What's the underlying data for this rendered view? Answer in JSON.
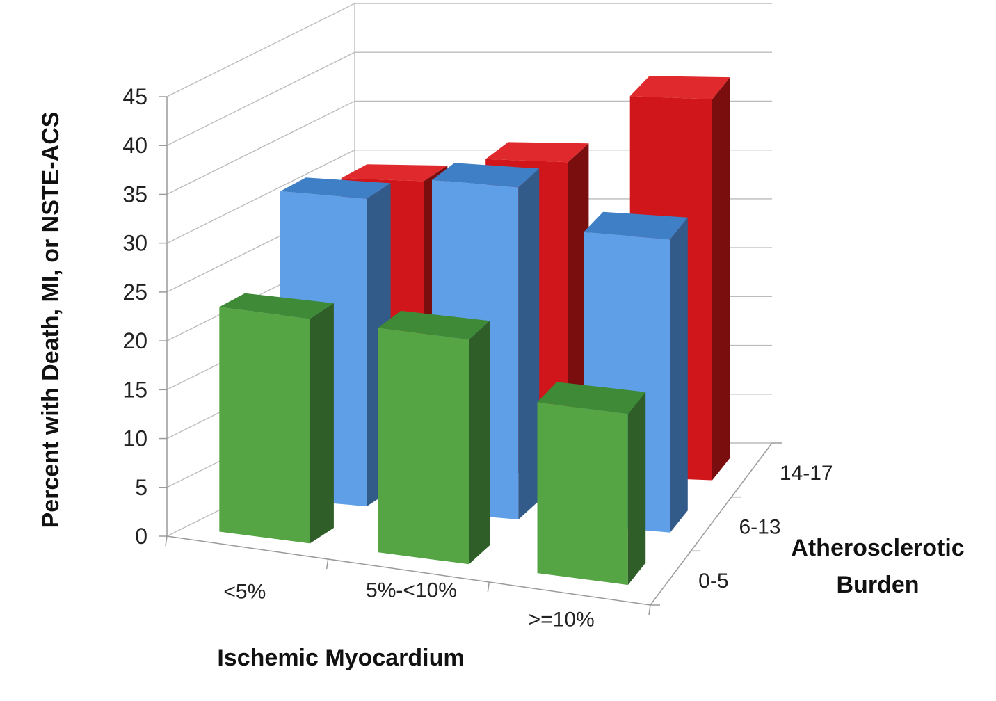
{
  "chart_data": {
    "type": "bar",
    "subtype": "3d-clustered-depth",
    "title": "",
    "ylabel": "Percent with Death, MI, or NSTE-ACS",
    "xlabel": "Ischemic Myocardium",
    "zlabel_lines": [
      "Atherosclerotic",
      "Burden"
    ],
    "ylim": [
      0,
      45
    ],
    "ytick_step": 5,
    "yticks": [
      "0",
      "5",
      "10",
      "15",
      "20",
      "25",
      "30",
      "35",
      "40",
      "45"
    ],
    "grid": true,
    "legend": "none",
    "categories": [
      "<5%",
      "5%-<10%",
      ">=10%"
    ],
    "series": [
      {
        "name": "14-17",
        "values": [
          29.5,
          32,
          39
        ],
        "color": "#d0161a",
        "side_color": "#7a0d0e",
        "top_color": "#e0292c"
      },
      {
        "name": "6-13",
        "values": [
          31.5,
          34,
          30
        ],
        "color": "#5f9fe8",
        "side_color": "#335b8a",
        "top_color": "#3f7fc6"
      },
      {
        "name": "0-5",
        "values": [
          23,
          23,
          17.5
        ],
        "color": "#55a545",
        "side_color": "#2f5e28",
        "top_color": "#3e8a36"
      }
    ]
  }
}
